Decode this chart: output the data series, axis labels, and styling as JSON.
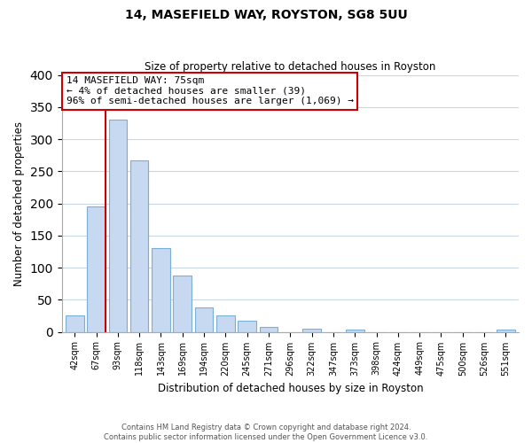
{
  "title": "14, MASEFIELD WAY, ROYSTON, SG8 5UU",
  "subtitle": "Size of property relative to detached houses in Royston",
  "xlabel": "Distribution of detached houses by size in Royston",
  "ylabel": "Number of detached properties",
  "bar_labels": [
    "42sqm",
    "67sqm",
    "93sqm",
    "118sqm",
    "143sqm",
    "169sqm",
    "194sqm",
    "220sqm",
    "245sqm",
    "271sqm",
    "296sqm",
    "322sqm",
    "347sqm",
    "373sqm",
    "398sqm",
    "424sqm",
    "449sqm",
    "475sqm",
    "500sqm",
    "526sqm",
    "551sqm"
  ],
  "bar_values": [
    25,
    195,
    330,
    267,
    130,
    87,
    38,
    25,
    17,
    8,
    0,
    5,
    0,
    3,
    0,
    0,
    0,
    0,
    0,
    0,
    3
  ],
  "bar_color": "#c6d9f0",
  "bar_edge_color": "#7bafd4",
  "vline_x_index": 1,
  "vline_color": "#cc0000",
  "ylim": [
    0,
    400
  ],
  "yticks": [
    0,
    50,
    100,
    150,
    200,
    250,
    300,
    350,
    400
  ],
  "annotation_title": "14 MASEFIELD WAY: 75sqm",
  "annotation_line1": "← 4% of detached houses are smaller (39)",
  "annotation_line2": "96% of semi-detached houses are larger (1,069) →",
  "footer_line1": "Contains HM Land Registry data © Crown copyright and database right 2024.",
  "footer_line2": "Contains public sector information licensed under the Open Government Licence v3.0.",
  "background_color": "#ffffff",
  "grid_color": "#c8d8e8"
}
